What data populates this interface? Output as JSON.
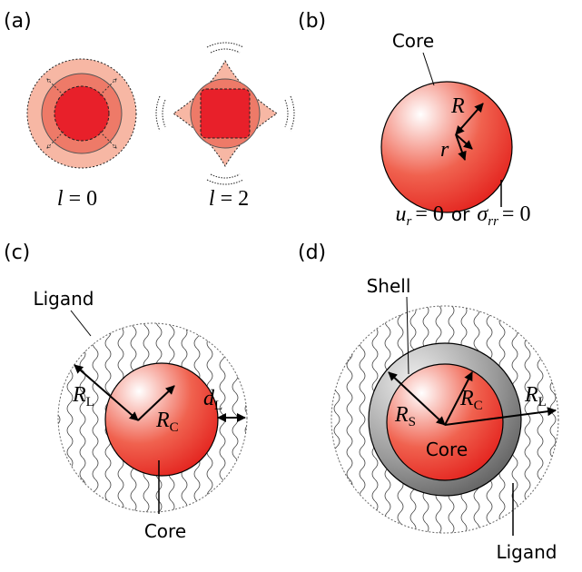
{
  "panel_labels": [
    "(a)",
    "(b)",
    "(c)",
    "(d)"
  ],
  "a": {
    "modes": [
      {
        "symbol": "l",
        "value": "= 0"
      },
      {
        "symbol": "l",
        "value": "= 2"
      }
    ]
  },
  "b": {
    "core": "Core",
    "R": "R",
    "r": "r",
    "bc": {
      "u": "u",
      "u_sub": "r",
      "u_eq": "= 0",
      "or": "or",
      "sigma": "σ",
      "sigma_sub": "rr",
      "sigma_eq": "= 0"
    }
  },
  "c": {
    "ligand": "Ligand",
    "core": "Core",
    "R_L": {
      "main": "R",
      "sub": "L"
    },
    "R_C": {
      "main": "R",
      "sub": "C"
    },
    "d_L": {
      "main": "d",
      "sub": "L"
    }
  },
  "d": {
    "shell": "Shell",
    "core": "Core",
    "ligand": "Ligand",
    "R_S": {
      "main": "R",
      "sub": "S"
    },
    "R_C": {
      "main": "R",
      "sub": "C"
    },
    "R_L": {
      "main": "R",
      "sub": "L"
    }
  }
}
